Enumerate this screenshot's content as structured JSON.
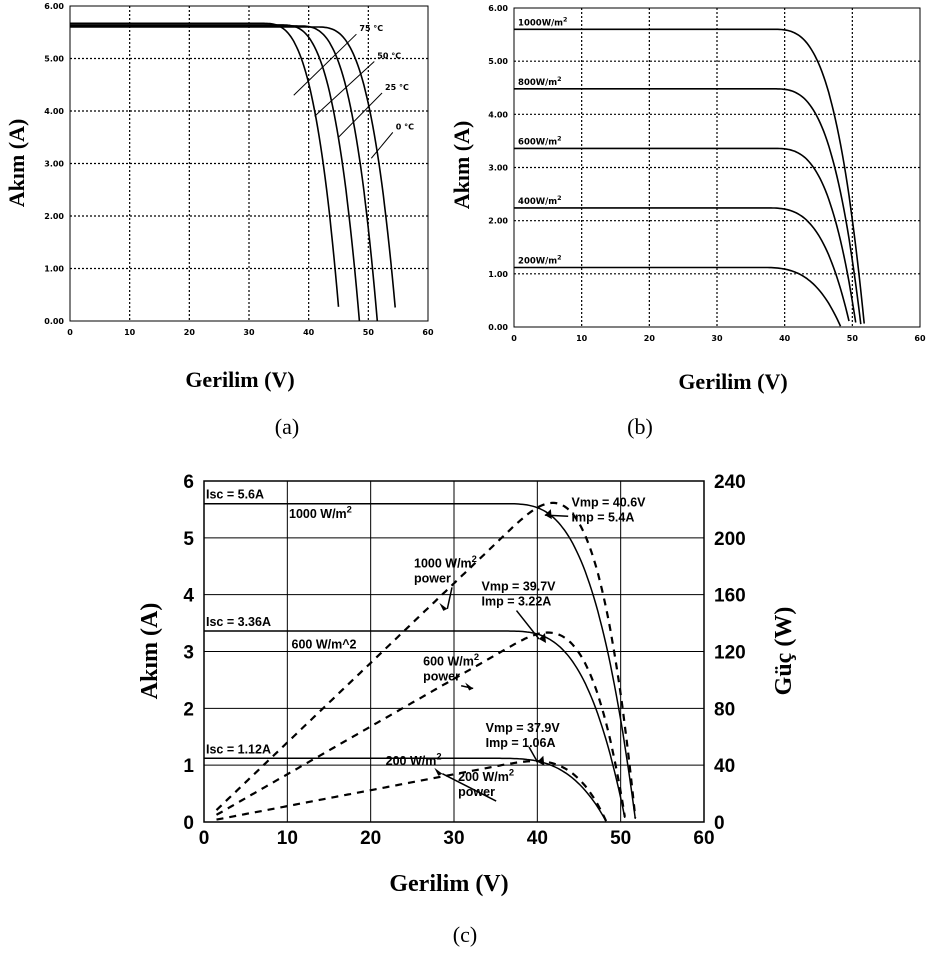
{
  "chart_data": [
    {
      "id": "a",
      "type": "line",
      "caption": "(a)",
      "xlabel": "Gerilim (V)",
      "ylabel": "Akım (A)",
      "xlim": [
        0,
        60
      ],
      "ylim": [
        0,
        6
      ],
      "x_ticks": [
        "0",
        "10",
        "20",
        "30",
        "40",
        "50",
        "60"
      ],
      "y_ticks": [
        "0.00",
        "1.00",
        "2.00",
        "3.00",
        "4.00",
        "5.00",
        "6.00"
      ],
      "grid": true,
      "series": [
        {
          "name": "75 °C",
          "isc": 5.67,
          "voc": 45.2,
          "knee": 32
        },
        {
          "name": "50 °C",
          "isc": 5.64,
          "voc": 48.5,
          "knee": 35
        },
        {
          "name": "25 °C",
          "isc": 5.62,
          "voc": 51.5,
          "knee": 38
        },
        {
          "name": "0 °C",
          "isc": 5.6,
          "voc": 54.7,
          "knee": 41
        }
      ],
      "labels": [
        {
          "text": "75 °C",
          "x": 48.5,
          "y": 5.52,
          "tx": 37.5,
          "ty": 4.3
        },
        {
          "text": "50 °C",
          "x": 51.5,
          "y": 5.0,
          "tx": 41,
          "ty": 3.9
        },
        {
          "text": "25 °C",
          "x": 52.8,
          "y": 4.4,
          "tx": 45,
          "ty": 3.5
        },
        {
          "text": "0 °C",
          "x": 54.6,
          "y": 3.65,
          "tx": 50.5,
          "ty": 3.1
        }
      ]
    },
    {
      "id": "b",
      "type": "line",
      "caption": "(b)",
      "xlabel": "Gerilim (V)",
      "ylabel": "Akım (A)",
      "xlim": [
        0,
        60
      ],
      "ylim": [
        0,
        6
      ],
      "x_ticks": [
        "0",
        "10",
        "20",
        "30",
        "40",
        "50",
        "60"
      ],
      "y_ticks": [
        "0.00",
        "1.00",
        "2.00",
        "3.00",
        "4.00",
        "5.00",
        "6.00"
      ],
      "grid": true,
      "series": [
        {
          "name": "1000W/m²",
          "isc": 5.6,
          "voc": 51.8,
          "knee": 38
        },
        {
          "name": "800W/m²",
          "isc": 4.48,
          "voc": 51.3,
          "knee": 38
        },
        {
          "name": "600W/m²",
          "isc": 3.36,
          "voc": 50.6,
          "knee": 38
        },
        {
          "name": "400W/m²",
          "isc": 2.24,
          "voc": 49.7,
          "knee": 37
        },
        {
          "name": "200W/m²",
          "isc": 1.12,
          "voc": 48.3,
          "knee": 36
        }
      ]
    },
    {
      "id": "c",
      "type": "line",
      "caption": "(c)",
      "xlabel": "Gerilim (V)",
      "ylabel": "Akım (A)",
      "y2label": "Güç (W)",
      "xlim": [
        0,
        60
      ],
      "ylim": [
        0,
        6
      ],
      "y2lim": [
        0,
        240
      ],
      "x_ticks": [
        "0",
        "10",
        "20",
        "30",
        "40",
        "50",
        "60"
      ],
      "y_ticks": [
        "0",
        "1",
        "2",
        "3",
        "4",
        "5",
        "6"
      ],
      "y2_ticks": [
        "0",
        "40",
        "80",
        "120",
        "160",
        "200",
        "240"
      ],
      "grid": true,
      "current_series": [
        {
          "name": "1000 W/m²",
          "isc": 5.6,
          "voc": 51.8,
          "knee": 36
        },
        {
          "name": "600 W/m^2",
          "isc": 3.36,
          "voc": 50.6,
          "knee": 36
        },
        {
          "name": "200 W/m²",
          "isc": 1.12,
          "voc": 48.3,
          "knee": 35
        }
      ],
      "power_series": [
        {
          "name": "1000 W/m² power",
          "isc": 5.6,
          "voc": 51.8,
          "knee": 36
        },
        {
          "name": "600 W/m² power",
          "isc": 3.36,
          "voc": 50.6,
          "knee": 36
        },
        {
          "name": "200 W/m² power",
          "isc": 1.12,
          "voc": 48.3,
          "knee": 35
        }
      ],
      "annotations": {
        "isc_1000": "Isc = 5.6A",
        "isc_600": "Isc = 3.36A",
        "isc_200": "Isc = 1.12A",
        "irr_1000": "1000 W/m²",
        "irr_600": "600 W/m^2",
        "irr_200": "200 W/m²",
        "power_1000": [
          "1000 W/m²",
          "power"
        ],
        "power_600": [
          "600 W/m²",
          "power"
        ],
        "power_200": [
          "200 W/m²",
          "power"
        ],
        "mpp_1000": [
          "Vmp = 40.6V",
          "Imp = 5.4A"
        ],
        "mpp_600": [
          "Vmp = 39.7V",
          "Imp = 3.22A"
        ],
        "mpp_200": [
          "Vmp = 37.9V",
          "Imp = 1.06A"
        ]
      }
    }
  ]
}
